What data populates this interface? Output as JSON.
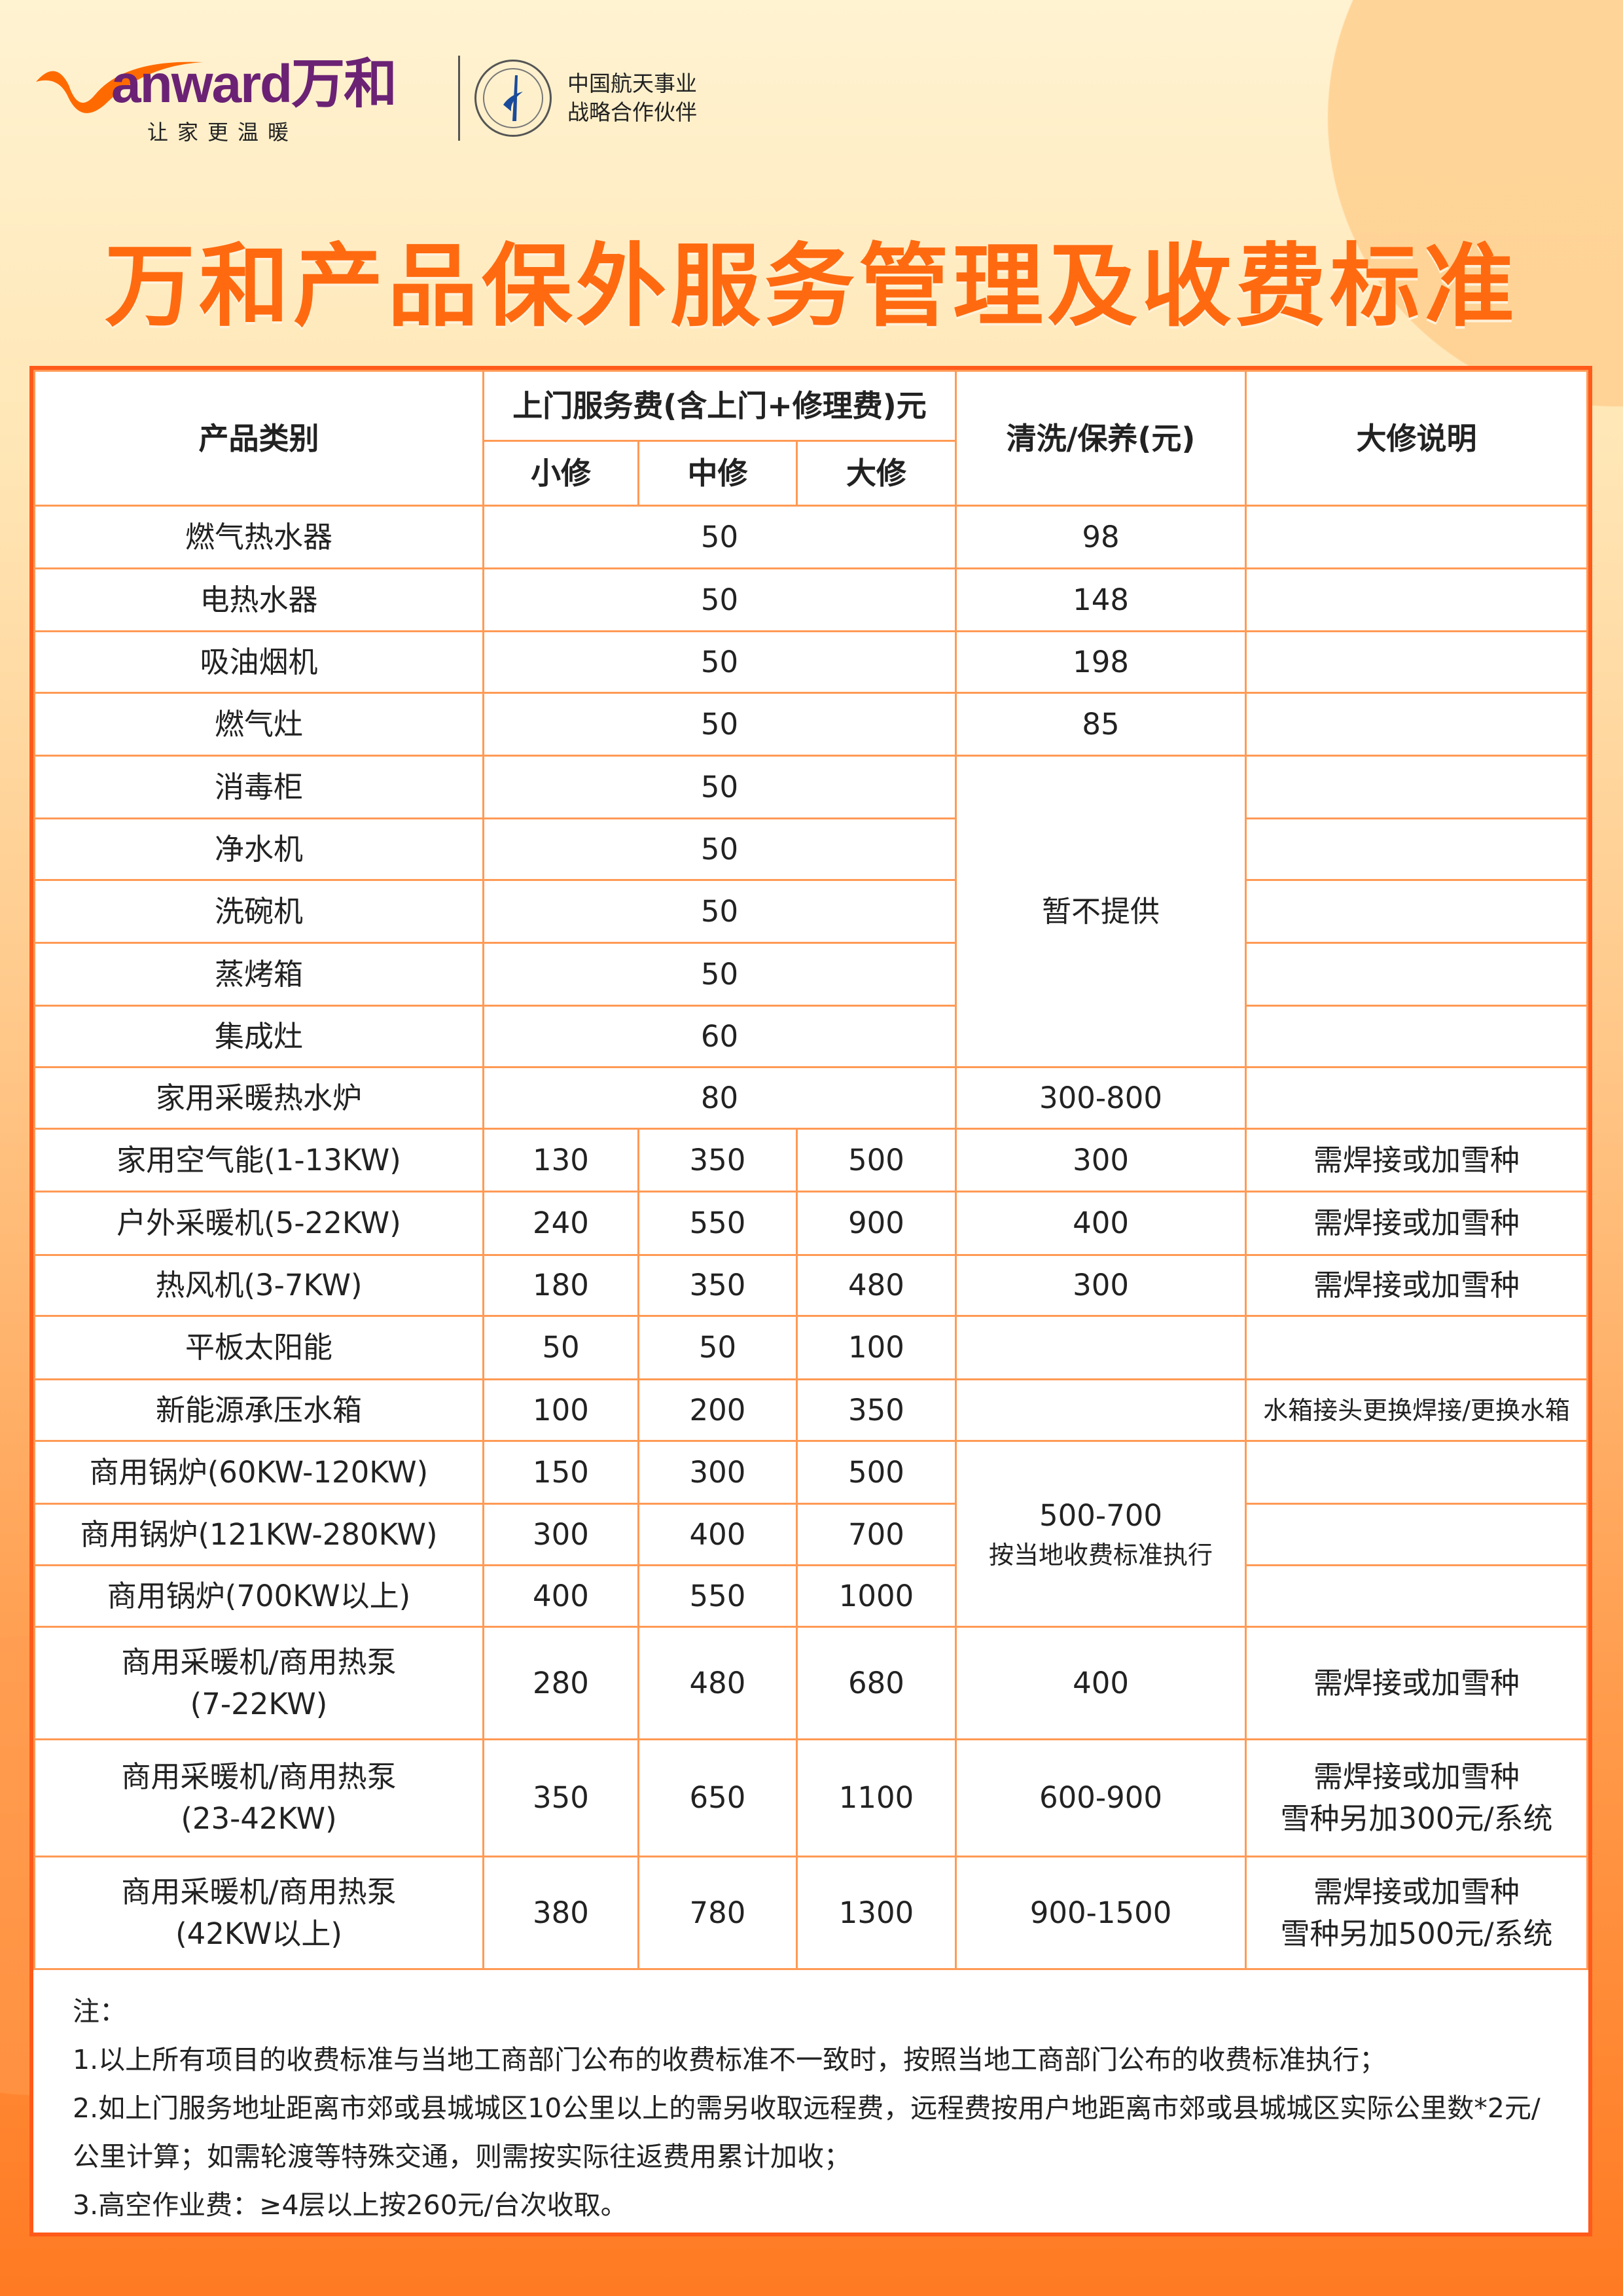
{
  "brand": {
    "logo_text": "Vanward万和",
    "slogan": "让家更温暖",
    "partner_line1": "中国航天事业",
    "partner_line2": "战略合作伙伴",
    "accent": "#ff6a10",
    "border": "#ff5a1a"
  },
  "title": "万和产品保外服务管理及收费标准",
  "table": {
    "headers": {
      "category": "产品类别",
      "service_fee": "上门服务费(含上门+修理费)元",
      "minor": "小修",
      "medium": "中修",
      "major": "大修",
      "cleaning": "清洗/保养(元)",
      "major_note": "大修说明"
    },
    "rows": [
      {
        "name": "燃气热水器",
        "fee": "50",
        "clean": "98"
      },
      {
        "name": "电热水器",
        "fee": "50",
        "clean": "148"
      },
      {
        "name": "吸油烟机",
        "fee": "50",
        "clean": "198"
      },
      {
        "name": "燃气灶",
        "fee": "50",
        "clean": "85"
      },
      {
        "name": "消毒柜",
        "fee": "50",
        "clean": "暂不提供",
        "clean_span": 5
      },
      {
        "name": "净水机",
        "fee": "50"
      },
      {
        "name": "洗碗机",
        "fee": "50"
      },
      {
        "name": "蒸烤箱",
        "fee": "50"
      },
      {
        "name": "集成灶",
        "fee": "60"
      },
      {
        "name": "家用采暖热水炉",
        "fee": "80",
        "clean": "300-800"
      },
      {
        "name": "家用空气能(1-13KW)",
        "minor": "130",
        "medium": "350",
        "major": "500",
        "clean": "300",
        "note": "需焊接或加雪种"
      },
      {
        "name": "户外采暖机(5-22KW)",
        "minor": "240",
        "medium": "550",
        "major": "900",
        "clean": "400",
        "note": "需焊接或加雪种"
      },
      {
        "name": "热风机(3-7KW)",
        "minor": "180",
        "medium": "350",
        "major": "480",
        "clean": "300",
        "note": "需焊接或加雪种"
      },
      {
        "name": "平板太阳能",
        "minor": "50",
        "medium": "50",
        "major": "100",
        "clean": ""
      },
      {
        "name": "新能源承压水箱",
        "minor": "100",
        "medium": "200",
        "major": "350",
        "clean": "",
        "note": "水箱接头更换焊接/更换水箱"
      },
      {
        "name": "商用锅炉(60KW-120KW)",
        "minor": "150",
        "medium": "300",
        "major": "500",
        "clean": "500-700",
        "clean_sub": "按当地收费标准执行",
        "clean_span": 3
      },
      {
        "name": "商用锅炉(121KW-280KW)",
        "minor": "300",
        "medium": "400",
        "major": "700"
      },
      {
        "name": "商用锅炉(700KW以上)",
        "minor": "400",
        "medium": "550",
        "major": "1000"
      },
      {
        "name": "商用采暖机/商用热泵",
        "name2": "(7-22KW)",
        "minor": "280",
        "medium": "480",
        "major": "680",
        "clean": "400",
        "note": "需焊接或加雪种"
      },
      {
        "name": "商用采暖机/商用热泵",
        "name2": "(23-42KW)",
        "minor": "350",
        "medium": "650",
        "major": "1100",
        "clean": "600-900",
        "note": "需焊接或加雪种",
        "note2": "雪种另加300元/系统"
      },
      {
        "name": "商用采暖机/商用热泵",
        "name2": "(42KW以上)",
        "minor": "380",
        "medium": "780",
        "major": "1300",
        "clean": "900-1500",
        "note": "需焊接或加雪种",
        "note2": "雪种另加500元/系统"
      }
    ]
  },
  "notes": {
    "label": "注：",
    "items": [
      "1.以上所有项目的收费标准与当地工商部门公布的收费标准不一致时，按照当地工商部门公布的收费标准执行；",
      "2.如上门服务地址距离市郊或县城城区10公里以上的需另收取远程费，远程费按用户地距离市郊或县城城区实际公里数*2元/公里计算；如需轮渡等特殊交通，则需按实际往返费用累计加收；",
      "3.高空作业费：≥4层以上按260元/台次收取。"
    ]
  }
}
